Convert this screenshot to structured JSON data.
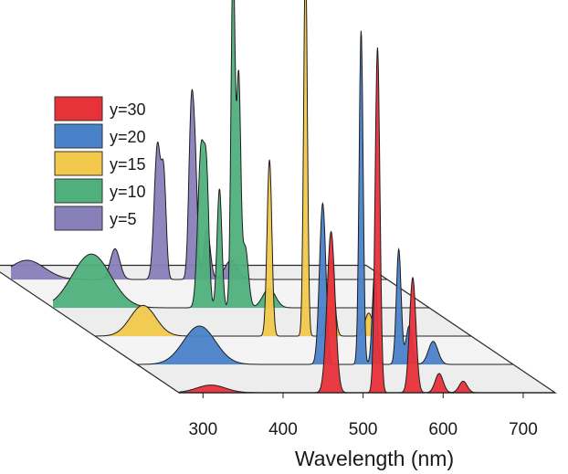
{
  "chart_data": {
    "type": "area",
    "subtype": "waterfall-3d",
    "x_axis": {
      "label": "Wavelength (nm)",
      "ticks": [
        300,
        400,
        500,
        600,
        700
      ],
      "range": [
        270,
        740
      ]
    },
    "y_axis": {
      "label": "",
      "range": [
        0,
        1
      ]
    },
    "legend": {
      "position": "left",
      "entries": [
        "y=30",
        "y=20",
        "y=15",
        "y=10",
        "y=5"
      ]
    },
    "colors": {
      "y=30": "#e8323a",
      "y=20": "#4a82c9",
      "y=15": "#f2c94c",
      "y=10": "#4fb07b",
      "y=5": "#8880b8",
      "floor": "#ededed",
      "floor_edge": "#2a2a2a"
    },
    "series": [
      {
        "name": "y=5",
        "depth": 4,
        "peaks": [
          {
            "x": 290,
            "y": 0.05,
            "w": 22
          },
          {
            "x": 400,
            "y": 0.08,
            "w": 6
          },
          {
            "x": 453,
            "y": 0.35,
            "w": 4
          },
          {
            "x": 461,
            "y": 0.25,
            "w": 3
          },
          {
            "x": 495,
            "y": 0.4,
            "w": 3
          },
          {
            "x": 500,
            "y": 0.28,
            "w": 3
          },
          {
            "x": 515,
            "y": 0.13,
            "w": 4
          },
          {
            "x": 545,
            "y": 0.05,
            "w": 8
          }
        ]
      },
      {
        "name": "y=10",
        "depth": 3,
        "peaks": [
          {
            "x": 318,
            "y": 0.14,
            "w": 24
          },
          {
            "x": 455,
            "y": 0.41,
            "w": 4
          },
          {
            "x": 462,
            "y": 0.3,
            "w": 3
          },
          {
            "x": 478,
            "y": 0.31,
            "w": 3
          },
          {
            "x": 495,
            "y": 0.92,
            "w": 2.5
          },
          {
            "x": 502,
            "y": 0.58,
            "w": 2.5
          },
          {
            "x": 510,
            "y": 0.16,
            "w": 4
          },
          {
            "x": 540,
            "y": 0.05,
            "w": 8
          }
        ]
      },
      {
        "name": "y=15",
        "depth": 2,
        "peaks": [
          {
            "x": 330,
            "y": 0.08,
            "w": 16
          },
          {
            "x": 488,
            "y": 0.46,
            "w": 3
          },
          {
            "x": 533,
            "y": 1.0,
            "w": 2.3
          },
          {
            "x": 565,
            "y": 0.2,
            "w": 4
          },
          {
            "x": 612,
            "y": 0.06,
            "w": 5
          }
        ]
      },
      {
        "name": "y=20",
        "depth": 1,
        "peaks": [
          {
            "x": 348,
            "y": 0.1,
            "w": 20
          },
          {
            "x": 502,
            "y": 0.42,
            "w": 4
          },
          {
            "x": 550,
            "y": 0.87,
            "w": 2.5
          },
          {
            "x": 567,
            "y": 0.24,
            "w": 3
          },
          {
            "x": 597,
            "y": 0.3,
            "w": 3
          },
          {
            "x": 610,
            "y": 0.1,
            "w": 4
          },
          {
            "x": 640,
            "y": 0.06,
            "w": 6
          }
        ]
      },
      {
        "name": "y=30",
        "depth": 0,
        "peaks": [
          {
            "x": 310,
            "y": 0.02,
            "w": 18
          },
          {
            "x": 460,
            "y": 0.42,
            "w": 5
          },
          {
            "x": 518,
            "y": 0.9,
            "w": 3
          },
          {
            "x": 562,
            "y": 0.3,
            "w": 4
          },
          {
            "x": 595,
            "y": 0.05,
            "w": 5
          },
          {
            "x": 625,
            "y": 0.03,
            "w": 5
          }
        ]
      }
    ]
  }
}
